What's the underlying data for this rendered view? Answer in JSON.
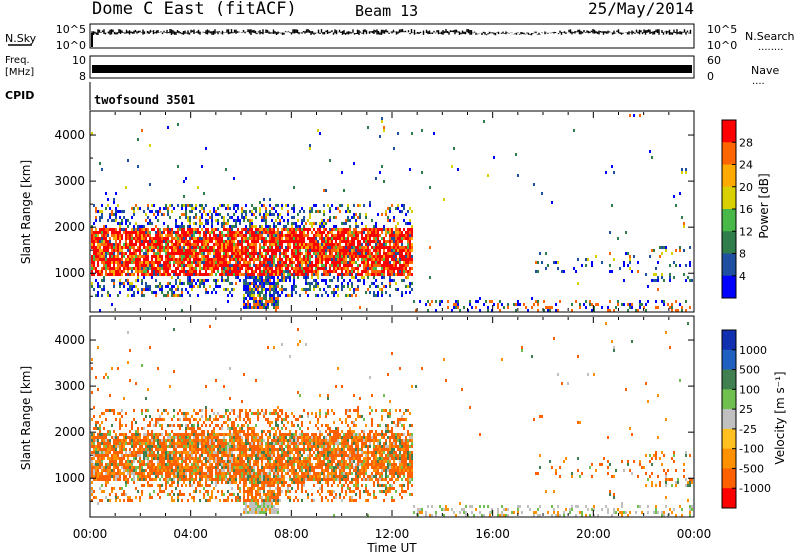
{
  "header": {
    "title": "Dome C East (fitACF)",
    "beam": "Beam 13",
    "date": "25/May/2014"
  },
  "nsky_panel": {
    "left_label": "N.Sky",
    "left_ticks": [
      "10^5",
      "10^0"
    ],
    "right_ticks": [
      "10^5",
      "10^0"
    ],
    "right_label": "N.Search"
  },
  "freq_panel": {
    "left_label_1": "Freq.",
    "left_label_2": "[MHz]",
    "left_ticks": [
      "10",
      "8"
    ],
    "right_ticks": [
      "60",
      "0"
    ],
    "right_label": "Nave"
  },
  "cpid_panel": {
    "left_label": "CPID",
    "program": "twofsound 3501"
  },
  "chart_data": [
    {
      "type": "heatmap",
      "name": "power",
      "ylabel": "Slant Range [km]",
      "ylim": [
        180,
        4500
      ],
      "yticks": [
        "1000",
        "2000",
        "3000",
        "4000"
      ],
      "xlim": [
        "00:00",
        "24:00"
      ],
      "colorbar_label": "Power [dB]",
      "colorbar_ticks": [
        "28",
        "24",
        "20",
        "16",
        "12",
        "8",
        "4"
      ],
      "colors": [
        "#0000ff",
        "#1e4fa0",
        "#2e7d4b",
        "#48b848",
        "#d8d000",
        "#ffaa00",
        "#ff6600",
        "#ff0000"
      ]
    },
    {
      "type": "heatmap",
      "name": "velocity",
      "ylabel": "Slant Range [km]",
      "ylim": [
        180,
        4500
      ],
      "yticks": [
        "1000",
        "2000",
        "3000",
        "4000"
      ],
      "xlim": [
        "00:00",
        "24:00"
      ],
      "colorbar_label": "Velocity [m s⁻¹]",
      "colorbar_ticks": [
        "1000",
        "500",
        "100",
        "25",
        "-25",
        "-100",
        "-500",
        "-1000"
      ],
      "colors": [
        "#1030b0",
        "#2060c0",
        "#408050",
        "#70c050",
        "#c0c0c0",
        "#ffc020",
        "#ff9000",
        "#ff6000",
        "#ff0000"
      ]
    }
  ],
  "x_axis": {
    "ticks": [
      "00:00",
      "04:00",
      "08:00",
      "12:00",
      "16:00",
      "20:00",
      "00:00"
    ],
    "label": "Time UT"
  },
  "legend_right": {
    "n_search_dots": "........",
    "nave_dots": "....",
    "nave_label": "Nave"
  }
}
